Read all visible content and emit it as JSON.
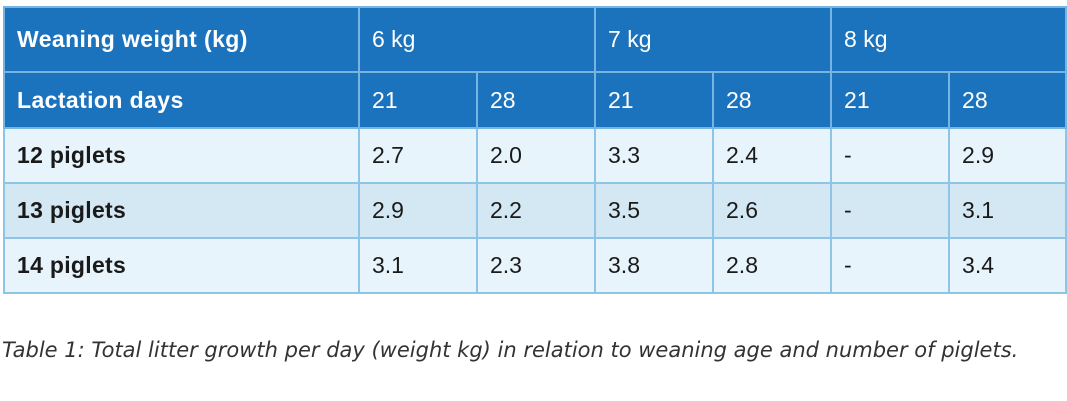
{
  "table": {
    "header_row_1": {
      "label": "Weaning weight (kg)",
      "groups": [
        "6 kg",
        "7 kg",
        "8 kg"
      ]
    },
    "header_row_2": {
      "label": "Lactation days",
      "days": [
        "21",
        "28",
        "21",
        "28",
        "21",
        "28"
      ]
    },
    "rows": [
      {
        "label": "12 piglets",
        "values": [
          "2.7",
          "2.0",
          "3.3",
          "2.4",
          "-",
          "2.9"
        ]
      },
      {
        "label": "13 piglets",
        "values": [
          "2.9",
          "2.2",
          "3.5",
          "2.6",
          "-",
          "3.1"
        ]
      },
      {
        "label": "14 piglets",
        "values": [
          "3.1",
          "2.3",
          "3.8",
          "2.8",
          "-",
          "3.4"
        ]
      }
    ]
  },
  "caption": "Table 1: Total litter growth per day (weight kg)  in relation to weaning age and number of piglets.",
  "colors": {
    "header_bg": "#1b73bd",
    "header_text": "#ffffff",
    "row_light": "#e8f4fb",
    "row_dark": "#d3e8f3",
    "grid": "#8ec5e6"
  }
}
